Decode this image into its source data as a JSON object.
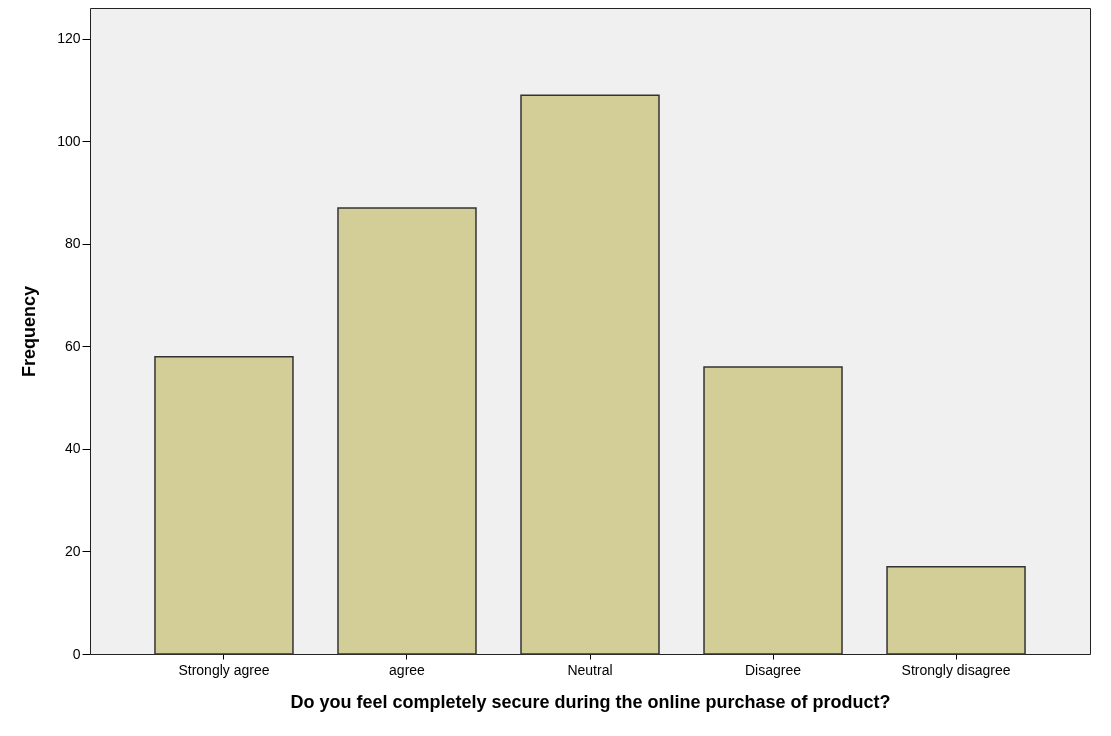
{
  "chart_data": {
    "type": "bar",
    "xlabel": "Do you feel completely secure during the online purchase of product?",
    "ylabel": "Frequency",
    "categories": [
      "Strongly agree",
      "agree",
      "Neutral",
      "Disagree",
      "Strongly disagree"
    ],
    "values": [
      58,
      87,
      109,
      56,
      17
    ],
    "color": "#d3ce97",
    "ylim": [
      0,
      126
    ],
    "yticks": [
      0,
      20,
      40,
      60,
      80,
      100,
      120
    ],
    "grid": false
  }
}
